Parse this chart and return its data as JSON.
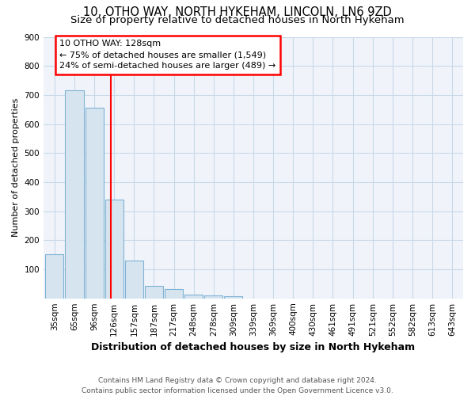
{
  "title1": "10, OTHO WAY, NORTH HYKEHAM, LINCOLN, LN6 9ZD",
  "title2": "Size of property relative to detached houses in North Hykeham",
  "xlabel": "Distribution of detached houses by size in North Hykeham",
  "ylabel": "Number of detached properties",
  "categories": [
    "35sqm",
    "65sqm",
    "96sqm",
    "126sqm",
    "157sqm",
    "187sqm",
    "217sqm",
    "248sqm",
    "278sqm",
    "309sqm",
    "339sqm",
    "369sqm",
    "400sqm",
    "430sqm",
    "461sqm",
    "491sqm",
    "521sqm",
    "552sqm",
    "582sqm",
    "613sqm",
    "643sqm"
  ],
  "values": [
    152,
    715,
    655,
    340,
    130,
    42,
    32,
    13,
    10,
    8,
    0,
    0,
    0,
    0,
    0,
    0,
    0,
    0,
    0,
    0,
    0
  ],
  "bar_color": "#d6e4f0",
  "bar_edge_color": "#7fb3d3",
  "red_line_x": 2.82,
  "annotation_line1": "10 OTHO WAY: 128sqm",
  "annotation_line2": "← 75% of detached houses are smaller (1,549)",
  "annotation_line3": "24% of semi-detached houses are larger (489) →",
  "annotation_box_color": "white",
  "annotation_box_edge_color": "red",
  "footer": "Contains HM Land Registry data © Crown copyright and database right 2024.\nContains public sector information licensed under the Open Government Licence v3.0.",
  "ylim": [
    0,
    900
  ],
  "yticks": [
    100,
    200,
    300,
    400,
    500,
    600,
    700,
    800,
    900
  ],
  "background_color": "#ffffff",
  "plot_bg_color": "#f0f4fa",
  "grid_color": "#c8d8ea",
  "title1_fontsize": 10.5,
  "title2_fontsize": 9.5,
  "xlabel_fontsize": 9,
  "ylabel_fontsize": 8,
  "tick_fontsize": 7.5,
  "footer_fontsize": 6.5
}
